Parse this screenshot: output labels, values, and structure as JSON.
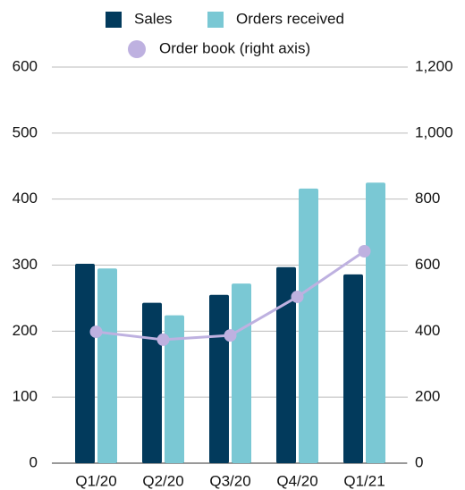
{
  "chart_data": {
    "type": "bar",
    "categories": [
      "Q1/20",
      "Q2/20",
      "Q3/20",
      "Q4/20",
      "Q1/21"
    ],
    "series": [
      {
        "name": "Sales",
        "color": "#023a5c",
        "values": [
          302,
          243,
          255,
          297,
          286
        ]
      },
      {
        "name": "Orders received",
        "color": "#7ac8d4",
        "values": [
          295,
          224,
          272,
          416,
          425
        ]
      },
      {
        "name": "Order book (right axis)",
        "color": "#beb1e0",
        "type": "line",
        "axis": "y2",
        "values": [
          398,
          374,
          387,
          504,
          642
        ]
      }
    ],
    "ylim": [
      0,
      600
    ],
    "yticks": [
      0,
      100,
      200,
      300,
      400,
      500,
      600
    ],
    "y2lim": [
      0,
      1200
    ],
    "y2ticks": [
      0,
      200,
      400,
      600,
      800,
      {
        "value": 1000,
        "label": "1,000"
      },
      {
        "value": 1200,
        "label": "1,200"
      }
    ],
    "grid": true,
    "legend": "top"
  }
}
